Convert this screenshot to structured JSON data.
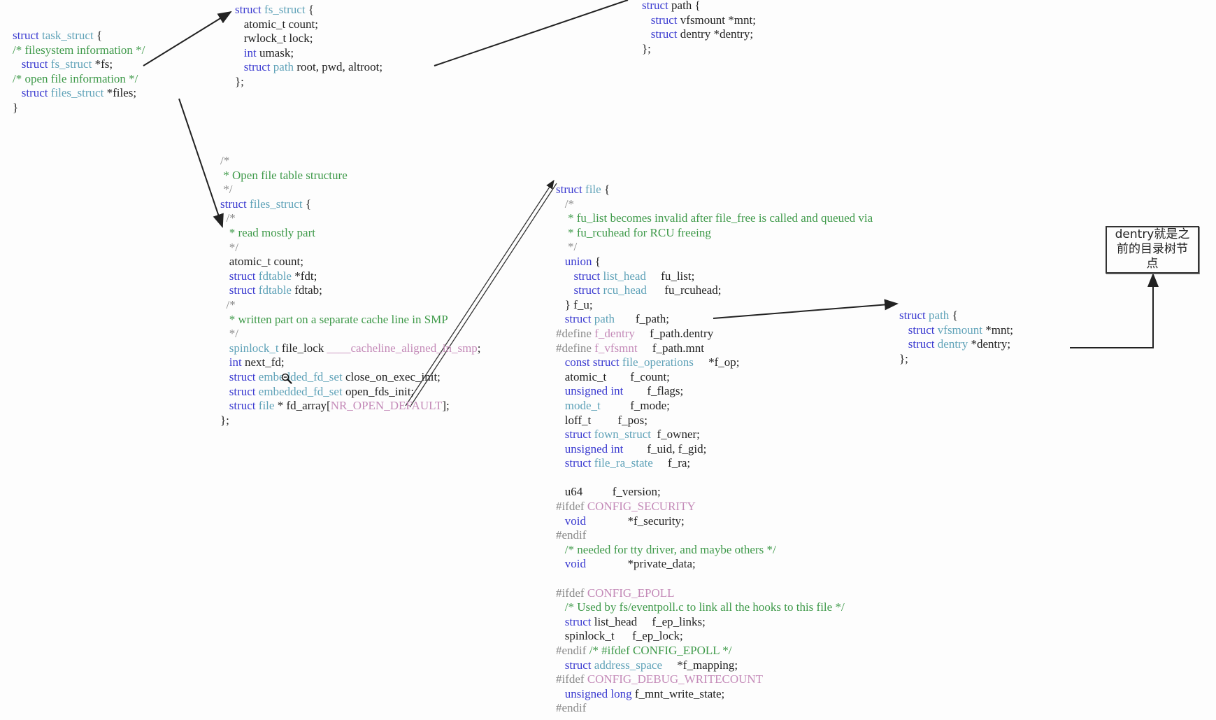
{
  "blocks": {
    "task_struct": [
      [
        [
          "k",
          "struct "
        ],
        [
          "t",
          "task_struct"
        ],
        [
          "n",
          " {"
        ]
      ],
      [
        [
          "c",
          "/* filesystem information */"
        ]
      ],
      [
        [
          "n",
          "   "
        ],
        [
          "k",
          "struct "
        ],
        [
          "t",
          "fs_struct"
        ],
        [
          "n",
          " *fs;"
        ]
      ],
      [
        [
          "c",
          "/* open file information */"
        ]
      ],
      [
        [
          "n",
          "   "
        ],
        [
          "k",
          "struct "
        ],
        [
          "t",
          "files_struct"
        ],
        [
          "n",
          " *files;"
        ]
      ],
      [
        [
          "n",
          "}"
        ]
      ]
    ],
    "fs_struct": [
      [
        [
          "k",
          "struct "
        ],
        [
          "t",
          "fs_struct"
        ],
        [
          "n",
          " {"
        ]
      ],
      [
        [
          "n",
          "   atomic_t count;"
        ]
      ],
      [
        [
          "n",
          "   rwlock_t lock;"
        ]
      ],
      [
        [
          "n",
          "   "
        ],
        [
          "k",
          "int"
        ],
        [
          "n",
          " umask;"
        ]
      ],
      [
        [
          "n",
          "   "
        ],
        [
          "k",
          "struct "
        ],
        [
          "t",
          "path"
        ],
        [
          "n",
          " root, pwd, altroot;"
        ]
      ],
      [
        [
          "n",
          "};"
        ]
      ]
    ],
    "path_top": [
      [
        [
          "k",
          "struct "
        ],
        [
          "n",
          "path {"
        ]
      ],
      [
        [
          "n",
          "   "
        ],
        [
          "k",
          "struct "
        ],
        [
          "n",
          "vfsmount *mnt;"
        ]
      ],
      [
        [
          "n",
          "   "
        ],
        [
          "k",
          "struct "
        ],
        [
          "n",
          "dentry *dentry;"
        ]
      ],
      [
        [
          "n",
          "};"
        ]
      ]
    ],
    "files_struct": [
      [
        [
          "p",
          "/*"
        ]
      ],
      [
        [
          "c",
          " * Open file table structure"
        ]
      ],
      [
        [
          "p",
          " */"
        ]
      ],
      [
        [
          "k",
          "struct "
        ],
        [
          "t",
          "files_struct"
        ],
        [
          "n",
          " {"
        ]
      ],
      [
        [
          "p",
          "  /*"
        ]
      ],
      [
        [
          "c",
          "   * read mostly part"
        ]
      ],
      [
        [
          "p",
          "   */"
        ]
      ],
      [
        [
          "n",
          "   atomic_t count;"
        ]
      ],
      [
        [
          "n",
          "   "
        ],
        [
          "k",
          "struct "
        ],
        [
          "t",
          "fdtable"
        ],
        [
          "n",
          " *fdt;"
        ]
      ],
      [
        [
          "n",
          "   "
        ],
        [
          "k",
          "struct "
        ],
        [
          "t",
          "fdtable"
        ],
        [
          "n",
          " fdtab;"
        ]
      ],
      [
        [
          "p",
          "  /*"
        ]
      ],
      [
        [
          "c",
          "   * written part on a separate cache line in SMP"
        ]
      ],
      [
        [
          "p",
          "   */"
        ]
      ],
      [
        [
          "n",
          "   "
        ],
        [
          "t",
          "spinlock_t"
        ],
        [
          "n",
          " file_lock "
        ],
        [
          "m",
          "____cacheline_aligned_in_smp"
        ],
        [
          "n",
          ";"
        ]
      ],
      [
        [
          "n",
          "   "
        ],
        [
          "k",
          "int"
        ],
        [
          "n",
          " next_fd;"
        ]
      ],
      [
        [
          "n",
          "   "
        ],
        [
          "k",
          "struct "
        ],
        [
          "t",
          "embedded_fd_set"
        ],
        [
          "n",
          " close_on_exec_init;"
        ]
      ],
      [
        [
          "n",
          "   "
        ],
        [
          "k",
          "struct "
        ],
        [
          "t",
          "embedded_fd_set"
        ],
        [
          "n",
          " open_fds_init;"
        ]
      ],
      [
        [
          "n",
          "   "
        ],
        [
          "k",
          "struct "
        ],
        [
          "t",
          "file"
        ],
        [
          "n",
          " * fd_array["
        ],
        [
          "m",
          "NR_OPEN_DEFAULT"
        ],
        [
          "n",
          "];"
        ]
      ],
      [
        [
          "n",
          "};"
        ]
      ]
    ],
    "file": [
      [
        [
          "k",
          "struct "
        ],
        [
          "t",
          "file"
        ],
        [
          "n",
          " {"
        ]
      ],
      [
        [
          "p",
          "   /*"
        ]
      ],
      [
        [
          "c",
          "    * fu_list becomes invalid after file_free is called and queued via"
        ]
      ],
      [
        [
          "c",
          "    * fu_rcuhead for RCU freeing"
        ]
      ],
      [
        [
          "p",
          "    */"
        ]
      ],
      [
        [
          "n",
          "   "
        ],
        [
          "k",
          "union"
        ],
        [
          "n",
          " {"
        ]
      ],
      [
        [
          "n",
          "      "
        ],
        [
          "k",
          "struct "
        ],
        [
          "t",
          "list_head"
        ],
        [
          "n",
          "     fu_list;"
        ]
      ],
      [
        [
          "n",
          "      "
        ],
        [
          "k",
          "struct "
        ],
        [
          "t",
          "rcu_head"
        ],
        [
          "n",
          "      fu_rcuhead;"
        ]
      ],
      [
        [
          "n",
          "   } f_u;"
        ]
      ],
      [
        [
          "n",
          "   "
        ],
        [
          "k",
          "struct "
        ],
        [
          "t",
          "path"
        ],
        [
          "n",
          "       f_path;"
        ]
      ],
      [
        [
          "p",
          "#define "
        ],
        [
          "m",
          "f_dentry"
        ],
        [
          "n",
          "     f_path.dentry"
        ]
      ],
      [
        [
          "p",
          "#define "
        ],
        [
          "m",
          "f_vfsmnt"
        ],
        [
          "n",
          "     f_path.mnt"
        ]
      ],
      [
        [
          "n",
          "   "
        ],
        [
          "k",
          "const struct "
        ],
        [
          "t",
          "file_operations"
        ],
        [
          "n",
          "     *f_op;"
        ]
      ],
      [
        [
          "n",
          "   atomic_t        f_count;"
        ]
      ],
      [
        [
          "n",
          "   "
        ],
        [
          "k",
          "unsigned int"
        ],
        [
          "n",
          "        f_flags;"
        ]
      ],
      [
        [
          "n",
          "   "
        ],
        [
          "t",
          "mode_t"
        ],
        [
          "n",
          "          f_mode;"
        ]
      ],
      [
        [
          "n",
          "   loff_t         f_pos;"
        ]
      ],
      [
        [
          "n",
          "   "
        ],
        [
          "k",
          "struct "
        ],
        [
          "t",
          "fown_struct"
        ],
        [
          "n",
          "  f_owner;"
        ]
      ],
      [
        [
          "n",
          "   "
        ],
        [
          "k",
          "unsigned int"
        ],
        [
          "n",
          "        f_uid, f_gid;"
        ]
      ],
      [
        [
          "n",
          "   "
        ],
        [
          "k",
          "struct "
        ],
        [
          "t",
          "file_ra_state"
        ],
        [
          "n",
          "     f_ra;"
        ]
      ],
      [
        [
          "n",
          " "
        ]
      ],
      [
        [
          "n",
          "   u64          f_version;"
        ]
      ],
      [
        [
          "p",
          "#ifdef "
        ],
        [
          "m",
          "CONFIG_SECURITY"
        ]
      ],
      [
        [
          "n",
          "   "
        ],
        [
          "k",
          "void"
        ],
        [
          "n",
          "              *f_security;"
        ]
      ],
      [
        [
          "p",
          "#endif"
        ]
      ],
      [
        [
          "c",
          "   /* needed for tty driver, and maybe others */"
        ]
      ],
      [
        [
          "n",
          "   "
        ],
        [
          "k",
          "void"
        ],
        [
          "n",
          "              *private_data;"
        ]
      ],
      [
        [
          "n",
          " "
        ]
      ],
      [
        [
          "p",
          "#ifdef "
        ],
        [
          "m",
          "CONFIG_EPOLL"
        ]
      ],
      [
        [
          "c",
          "   /* Used by fs/eventpoll.c to link all the hooks to this file */"
        ]
      ],
      [
        [
          "n",
          "   "
        ],
        [
          "k",
          "struct "
        ],
        [
          "n",
          "list_head     f_ep_links;"
        ]
      ],
      [
        [
          "n",
          "   spinlock_t      f_ep_lock;"
        ]
      ],
      [
        [
          "p",
          "#endif "
        ],
        [
          "c",
          "/* #ifdef CONFIG_EPOLL */"
        ]
      ],
      [
        [
          "n",
          "   "
        ],
        [
          "k",
          "struct "
        ],
        [
          "t",
          "address_space"
        ],
        [
          "n",
          "     *f_mapping;"
        ]
      ],
      [
        [
          "p",
          "#ifdef "
        ],
        [
          "m",
          "CONFIG_DEBUG_WRITECOUNT"
        ]
      ],
      [
        [
          "n",
          "   "
        ],
        [
          "k",
          "unsigned long"
        ],
        [
          "n",
          " f_mnt_write_state;"
        ]
      ],
      [
        [
          "p",
          "#endif"
        ]
      ]
    ],
    "path_right": [
      [
        [
          "k",
          "struct "
        ],
        [
          "t",
          "path"
        ],
        [
          "n",
          " {"
        ]
      ],
      [
        [
          "n",
          "   "
        ],
        [
          "k",
          "struct "
        ],
        [
          "t",
          "vfsmount"
        ],
        [
          "n",
          " *mnt;"
        ]
      ],
      [
        [
          "n",
          "   "
        ],
        [
          "k",
          "struct "
        ],
        [
          "t",
          "dentry"
        ],
        [
          "n",
          " *dentry;"
        ]
      ],
      [
        [
          "n",
          "};"
        ]
      ]
    ]
  },
  "note": {
    "line1": "dentry就是之",
    "line2": "前的目录树节",
    "line3": "点"
  },
  "colors": {
    "keyword": "#3a3ad0",
    "type": "#5fa2b8",
    "comment": "#3f9a4a",
    "macro": "#c48ab8",
    "preprocessor": "#8a8a8a",
    "arrow": "#222222"
  },
  "icons": {
    "cursor": "zoom-out-magnifier-icon"
  }
}
